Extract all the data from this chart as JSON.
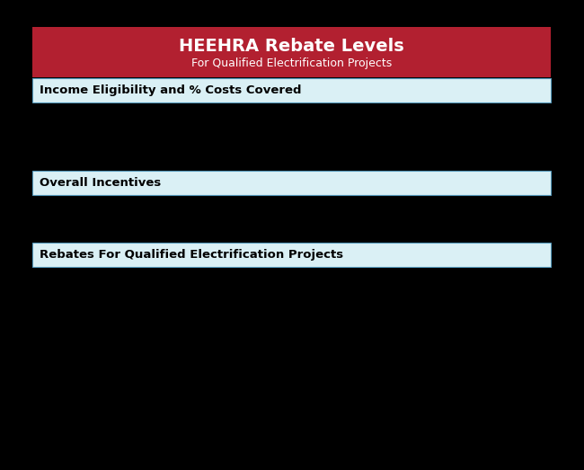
{
  "title": "HEEHRA Rebate Levels",
  "subtitle": "For Qualified Electrification Projects",
  "title_bg_color": "#b22030",
  "title_text_color": "#ffffff",
  "subtitle_text_color": "#ffffff",
  "row_bg_color": "#daf0f5",
  "row_border_color": "#5599bb",
  "background_color": "#000000",
  "rows": [
    "Income Eligibility and % Costs Covered",
    "Overall Incentives",
    "Rebates For Qualified Electrification Projects"
  ],
  "title_fontsize": 14,
  "subtitle_fontsize": 9,
  "row_fontsize": 9.5
}
